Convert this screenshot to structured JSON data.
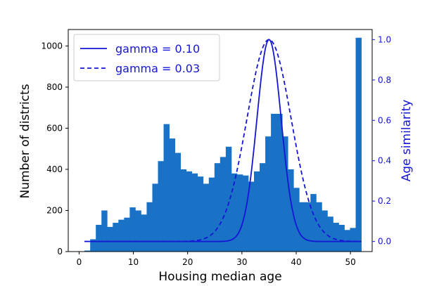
{
  "chart_data": {
    "type": "bar",
    "xlabel": "Housing median age",
    "ylabel": "Number of districts",
    "y2label": "Age similarity",
    "xlim": [
      -2,
      54
    ],
    "ylim": [
      0,
      1080
    ],
    "y2lim": [
      -0.05,
      1.05
    ],
    "xticks": [
      0,
      10,
      20,
      30,
      40,
      50
    ],
    "yticks": [
      0,
      200,
      400,
      600,
      800,
      1000
    ],
    "y2ticks": [
      0.0,
      0.2,
      0.4,
      0.6,
      0.8,
      1.0
    ],
    "y2tick_labels": [
      "0.0",
      "0.2",
      "0.4",
      "0.6",
      "0.8",
      "1.0"
    ],
    "grid": false,
    "legend_position": "upper-left",
    "colors": {
      "bars": "#1a72c6",
      "lines": "#1515d6",
      "right_axis": "#1515d6",
      "axes": "#000000"
    },
    "histogram": {
      "bin_start": 1,
      "bin_end": 52,
      "counts": [
        5,
        60,
        130,
        200,
        120,
        140,
        155,
        165,
        215,
        200,
        180,
        240,
        330,
        440,
        620,
        550,
        480,
        400,
        390,
        380,
        365,
        330,
        360,
        430,
        460,
        510,
        380,
        375,
        370,
        340,
        390,
        430,
        560,
        670,
        670,
        560,
        400,
        310,
        240,
        240,
        280,
        240,
        200,
        170,
        140,
        130,
        105,
        115,
        1040
      ]
    },
    "series": [
      {
        "name": "gamma = 0.10",
        "type": "line",
        "style": "solid",
        "center": 35,
        "gamma": 0.1
      },
      {
        "name": "gamma = 0.03",
        "type": "line",
        "style": "dashed",
        "center": 35,
        "gamma": 0.03
      }
    ]
  }
}
